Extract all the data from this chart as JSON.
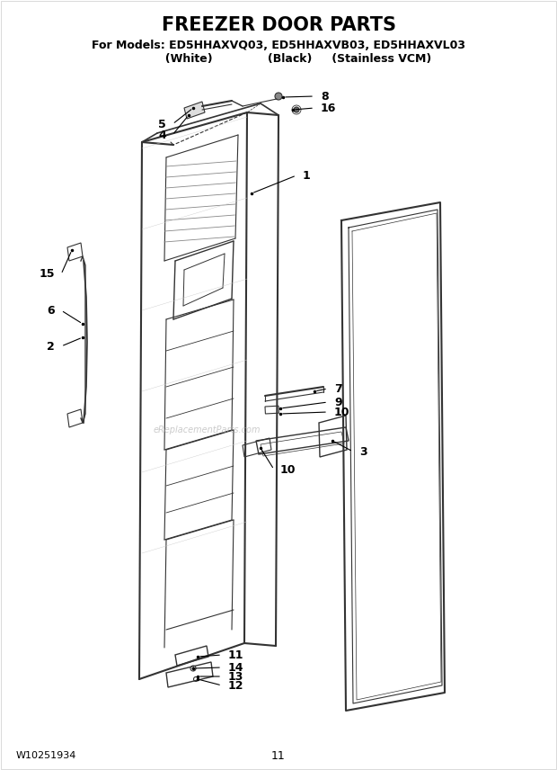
{
  "title": "FREEZER DOOR PARTS",
  "subtitle1": "For Models: ED5HHAXVQ03, ED5HHAXVB03, ED5HHAXVL03",
  "subtitle2": "          (White)              (Black)     (Stainless VCM)",
  "part_numbers": [
    1,
    2,
    3,
    4,
    5,
    6,
    7,
    8,
    9,
    10,
    11,
    12,
    13,
    14,
    15,
    16
  ],
  "footer_left": "W10251934",
  "footer_center": "11",
  "bg_color": "#ffffff",
  "line_color": "#000000",
  "diagram_line_color": "#333333",
  "watermark": "eReplacementParts.com"
}
